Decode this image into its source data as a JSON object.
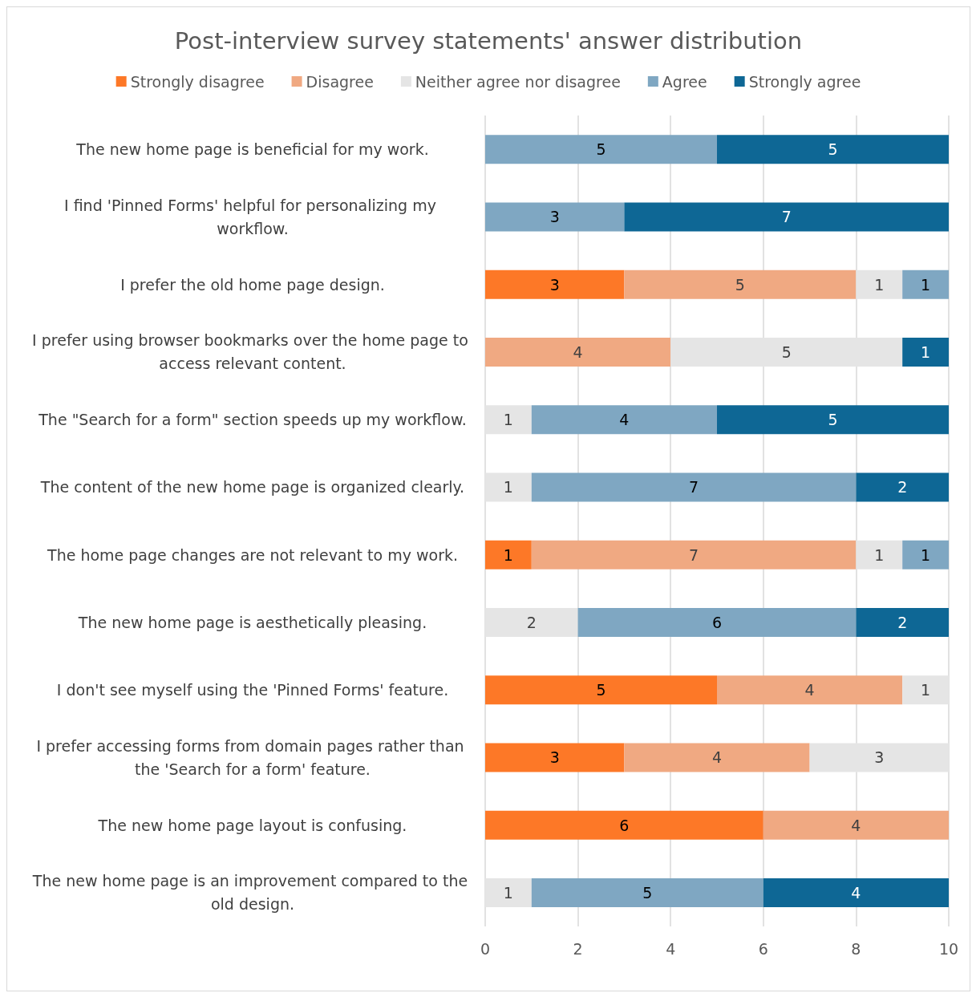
{
  "chart_data": {
    "type": "bar",
    "orientation": "horizontal",
    "stacked": true,
    "title": "Post-interview survey statements' answer distribution",
    "categories": [
      "The new home page is beneficial for my work.",
      "I find 'Pinned Forms' helpful for personalizing my workflow.",
      "I prefer the old home page design.",
      "I prefer using browser bookmarks over the home page to access relevant content.",
      "The \"Search for a form\" section speeds up my workflow.",
      "The content of the new home page is organized clearly.",
      "The home page changes are not relevant to my work.",
      "The new home page is aesthetically pleasing.",
      "I don't see myself using the 'Pinned Forms' feature.",
      "I prefer accessing forms from domain pages rather than the 'Search for a form' feature.",
      "The new home page layout is confusing.",
      "The new home page is an improvement compared to the old design."
    ],
    "series": [
      {
        "name": "Strongly disagree",
        "color": "#fd7827",
        "values": [
          null,
          null,
          3,
          null,
          null,
          null,
          1,
          null,
          5,
          3,
          6,
          null
        ]
      },
      {
        "name": "Disagree",
        "color": "#f0a982",
        "values": [
          null,
          null,
          5,
          4,
          null,
          null,
          7,
          null,
          4,
          4,
          4,
          null
        ]
      },
      {
        "name": "Neither agree nor disagree",
        "color": "#e5e5e5",
        "values": [
          null,
          null,
          1,
          5,
          1,
          1,
          1,
          2,
          1,
          3,
          null,
          1
        ]
      },
      {
        "name": "Agree",
        "color": "#7fa7c2",
        "values": [
          5,
          3,
          1,
          null,
          4,
          7,
          1,
          6,
          null,
          null,
          null,
          5
        ]
      },
      {
        "name": "Strongly agree",
        "color": "#0e6795",
        "values": [
          5,
          7,
          null,
          1,
          5,
          2,
          null,
          2,
          null,
          null,
          null,
          4
        ]
      }
    ],
    "xlim": [
      0,
      10
    ],
    "xticks": [
      0,
      2,
      4,
      6,
      8,
      10
    ],
    "grid": "x",
    "legend": "top",
    "data_labels": true
  }
}
